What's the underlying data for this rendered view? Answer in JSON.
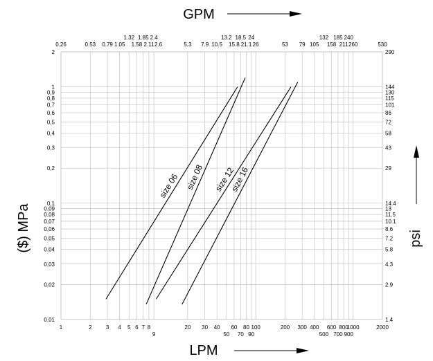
{
  "chart_data": {
    "type": "line",
    "top_axis_title": "GPM",
    "bottom_axis_title": "LPM",
    "left_axis_title": "($) MPa",
    "right_axis_title": "psi",
    "x_scale": "log",
    "y_scale": "log",
    "xlim": [
      1,
      2000
    ],
    "ylim": [
      0.01,
      2
    ],
    "grid": true,
    "lpm_ticks": [
      {
        "v": 1,
        "label": "1",
        "row": 0
      },
      {
        "v": 2,
        "label": "2",
        "row": 0
      },
      {
        "v": 3,
        "label": "3",
        "row": 0
      },
      {
        "v": 4,
        "label": "4",
        "row": 0
      },
      {
        "v": 5,
        "label": "5",
        "row": 0
      },
      {
        "v": 6,
        "label": "6",
        "row": 0
      },
      {
        "v": 7,
        "label": "7",
        "row": 0
      },
      {
        "v": 8,
        "label": "8",
        "row": 0
      },
      {
        "v": 9,
        "label": "9",
        "row": 1
      },
      {
        "v": 20,
        "label": "20",
        "row": 0
      },
      {
        "v": 30,
        "label": "30",
        "row": 0
      },
      {
        "v": 40,
        "label": "40",
        "row": 0
      },
      {
        "v": 50,
        "label": "50",
        "row": 1
      },
      {
        "v": 60,
        "label": "60",
        "row": 0
      },
      {
        "v": 70,
        "label": "70",
        "row": 1
      },
      {
        "v": 80,
        "label": "80",
        "row": 0
      },
      {
        "v": 90,
        "label": "90",
        "row": 1
      },
      {
        "v": 100,
        "label": "100",
        "row": 0
      },
      {
        "v": 200,
        "label": "200",
        "row": 0
      },
      {
        "v": 300,
        "label": "300",
        "row": 0
      },
      {
        "v": 400,
        "label": "400",
        "row": 0
      },
      {
        "v": 500,
        "label": "500",
        "row": 1
      },
      {
        "v": 600,
        "label": "600",
        "row": 0
      },
      {
        "v": 700,
        "label": "700",
        "row": 1
      },
      {
        "v": 800,
        "label": "800",
        "row": 0
      },
      {
        "v": 900,
        "label": "900",
        "row": 1
      },
      {
        "v": 1000,
        "label": "1000",
        "row": 0
      },
      {
        "v": 2000,
        "label": "2000",
        "row": 0
      }
    ],
    "gpm_ticks": [
      {
        "v": 1,
        "label": "0.26",
        "row": 1
      },
      {
        "v": 2,
        "label": "0.53",
        "row": 1
      },
      {
        "v": 3,
        "label": "0.79",
        "row": 1
      },
      {
        "v": 4,
        "label": "1.05",
        "row": 1
      },
      {
        "v": 5,
        "label": "1.32",
        "row": 0
      },
      {
        "v": 6,
        "label": "1.58",
        "row": 1
      },
      {
        "v": 7,
        "label": "1.85",
        "row": 0
      },
      {
        "v": 8,
        "label": "2.11",
        "row": 1
      },
      {
        "v": 9,
        "label": "2.4",
        "row": 0
      },
      {
        "v": 10,
        "label": "2.6",
        "row": 1
      },
      {
        "v": 20,
        "label": "5.3",
        "row": 1
      },
      {
        "v": 30,
        "label": "7.9",
        "row": 1
      },
      {
        "v": 40,
        "label": "10.5",
        "row": 1
      },
      {
        "v": 50,
        "label": "13.2",
        "row": 0
      },
      {
        "v": 60,
        "label": "15.8",
        "row": 1
      },
      {
        "v": 70,
        "label": "18.5",
        "row": 0
      },
      {
        "v": 80,
        "label": "21.1",
        "row": 1
      },
      {
        "v": 90,
        "label": "24",
        "row": 0
      },
      {
        "v": 100,
        "label": "26",
        "row": 1
      },
      {
        "v": 200,
        "label": "53",
        "row": 1
      },
      {
        "v": 300,
        "label": "79",
        "row": 1
      },
      {
        "v": 400,
        "label": "105",
        "row": 1
      },
      {
        "v": 500,
        "label": "132",
        "row": 0
      },
      {
        "v": 600,
        "label": "158",
        "row": 1
      },
      {
        "v": 700,
        "label": "185",
        "row": 0
      },
      {
        "v": 800,
        "label": "211",
        "row": 1
      },
      {
        "v": 900,
        "label": "240",
        "row": 0
      },
      {
        "v": 1000,
        "label": "260",
        "row": 1
      },
      {
        "v": 2000,
        "label": "530",
        "row": 1
      }
    ],
    "mpa_ticks": [
      {
        "v": 2,
        "label": "2"
      },
      {
        "v": 1,
        "label": "1"
      },
      {
        "v": 0.9,
        "label": "0,9"
      },
      {
        "v": 0.8,
        "label": "0,8"
      },
      {
        "v": 0.7,
        "label": "0,7"
      },
      {
        "v": 0.6,
        "label": "0,6"
      },
      {
        "v": 0.5,
        "label": "0,5"
      },
      {
        "v": 0.4,
        "label": "0,4"
      },
      {
        "v": 0.3,
        "label": "0,3"
      },
      {
        "v": 0.2,
        "label": "0,2"
      },
      {
        "v": 0.1,
        "label": "0,1"
      },
      {
        "v": 0.09,
        "label": "0,09"
      },
      {
        "v": 0.08,
        "label": "0,08"
      },
      {
        "v": 0.07,
        "label": "0,07"
      },
      {
        "v": 0.06,
        "label": "0,06"
      },
      {
        "v": 0.05,
        "label": "0,05"
      },
      {
        "v": 0.04,
        "label": "0,04"
      },
      {
        "v": 0.03,
        "label": "0,03"
      },
      {
        "v": 0.02,
        "label": "0,02"
      },
      {
        "v": 0.01,
        "label": "0,01"
      }
    ],
    "psi_ticks": [
      {
        "v": 2,
        "label": "290"
      },
      {
        "v": 1,
        "label": "144"
      },
      {
        "v": 0.9,
        "label": "130"
      },
      {
        "v": 0.8,
        "label": "115"
      },
      {
        "v": 0.7,
        "label": "101"
      },
      {
        "v": 0.6,
        "label": "86"
      },
      {
        "v": 0.5,
        "label": "72"
      },
      {
        "v": 0.4,
        "label": "58"
      },
      {
        "v": 0.3,
        "label": "43"
      },
      {
        "v": 0.2,
        "label": "29"
      },
      {
        "v": 0.1,
        "label": "14.4"
      },
      {
        "v": 0.09,
        "label": "13"
      },
      {
        "v": 0.08,
        "label": "11.5"
      },
      {
        "v": 0.07,
        "label": "10.1"
      },
      {
        "v": 0.06,
        "label": "8.6"
      },
      {
        "v": 0.05,
        "label": "7.2"
      },
      {
        "v": 0.04,
        "label": "5.8"
      },
      {
        "v": 0.03,
        "label": "4.3"
      },
      {
        "v": 0.02,
        "label": "2.9"
      },
      {
        "v": 0.01,
        "label": "1.4"
      }
    ],
    "series": [
      {
        "name": "size 06",
        "x": [
          2.9,
          65
        ],
        "y": [
          0.015,
          1.0
        ]
      },
      {
        "name": "size 08",
        "x": [
          7.5,
          78
        ],
        "y": [
          0.0135,
          1.2
        ]
      },
      {
        "name": "size 12",
        "x": [
          9.5,
          230
        ],
        "y": [
          0.015,
          1.0
        ]
      },
      {
        "name": "size 16",
        "x": [
          17.5,
          270
        ],
        "y": [
          0.0135,
          1.1
        ]
      }
    ]
  }
}
